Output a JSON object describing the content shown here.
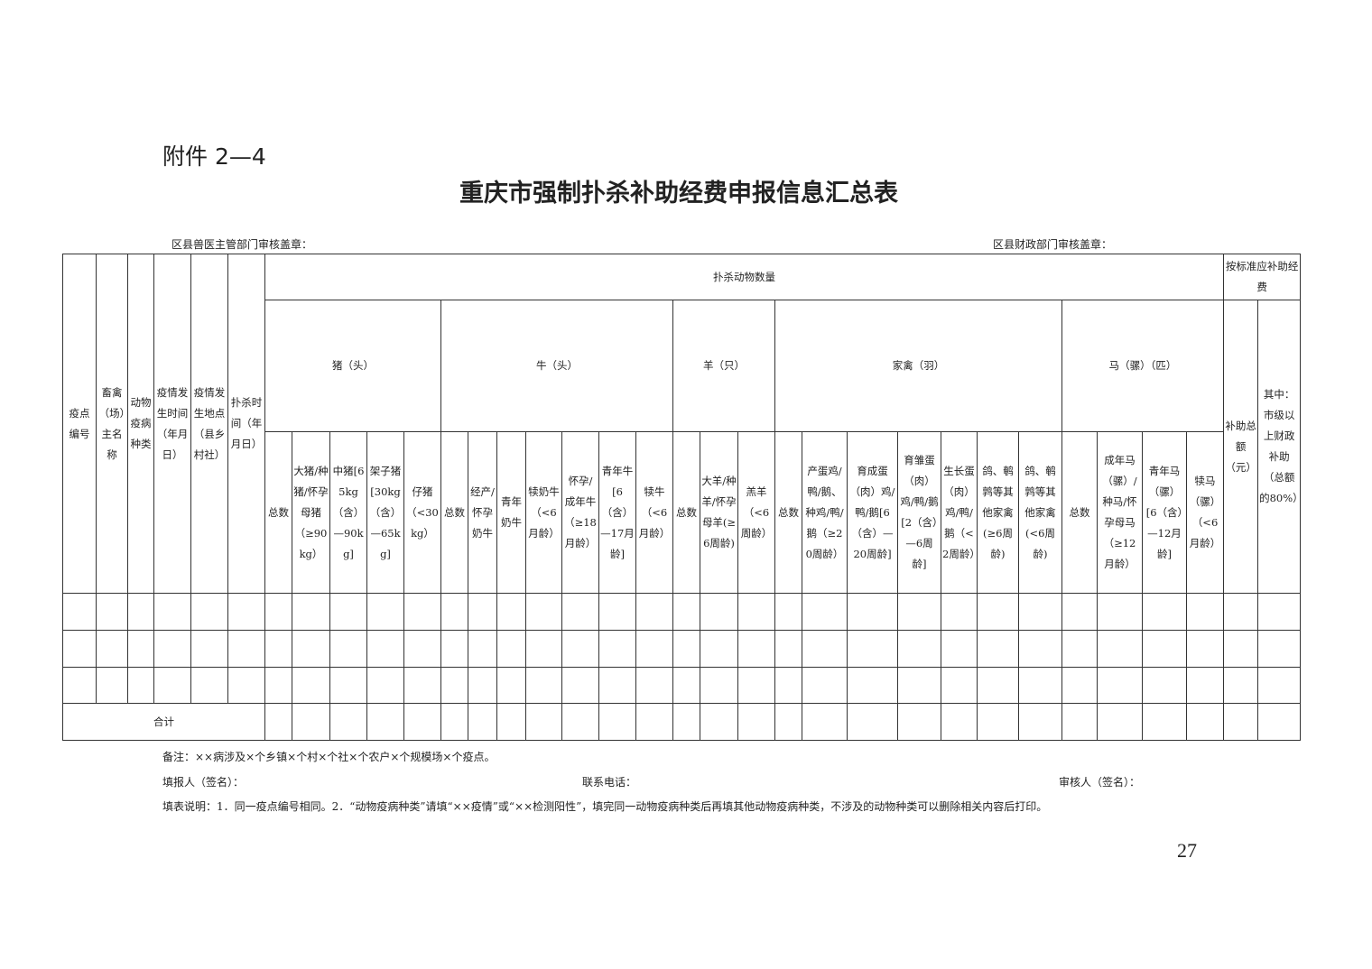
{
  "header": {
    "attachment": "附件 2—4",
    "title": "重庆市强制扑杀补助经费申报信息汇总表"
  },
  "stamps": {
    "left": "区县兽医主管部门审核盖章：",
    "right": "区县财政部门审核盖章："
  },
  "table": {
    "left_headers": [
      "疫点编号",
      "畜禽（场）主名称",
      "动物疫病种类",
      "疫情发生时间（年月日）",
      "疫情发生地点（县乡村社）",
      "扑杀时间（年月日）"
    ],
    "group_header": "扑杀动物数量",
    "subsidy_header": "按标准应补助经费",
    "animal_groups": [
      {
        "name": "猪（头）",
        "columns": [
          "总数",
          "大猪/种猪/怀孕母猪（≥90kg）",
          "中猪[65kg（含）—90kg]",
          "架子猪[30kg（含）—65kg]",
          "仔猪（<30kg）"
        ]
      },
      {
        "name": "牛（头）",
        "columns": [
          "总数",
          "经产/怀孕奶牛",
          "青年奶牛",
          "犊奶牛（<6月龄）",
          "怀孕/成年牛（≥18月龄）",
          "青年牛[6（含）—17月龄]",
          "犊牛（<6月龄）"
        ]
      },
      {
        "name": "羊（只）",
        "columns": [
          "总数",
          "大羊/种羊/怀孕母羊(≥6周龄)",
          "羔羊（<6周龄）"
        ]
      },
      {
        "name": "家禽（羽）",
        "columns": [
          "总数",
          "产蛋鸡/鸭/鹅、种鸡/鸭/鹅（≥20周龄）",
          "育成蛋（肉）鸡/鸭/鹅[6（含）—20周龄]",
          "育雏蛋（肉）鸡/鸭/鹅[2（含）—6周龄]",
          "生长蛋（肉）鸡/鸭/鹅（<2周龄）",
          "鸽、鹌鹑等其他家禽(≥6周龄)",
          "鸽、鹌鹑等其他家禽(<6周龄)"
        ]
      },
      {
        "name": "马（骡）（匹）",
        "columns": [
          "总数",
          "成年马（骡）/种马/怀孕母马（≥12月龄）",
          "青年马（骡）[6（含）—12月龄]",
          "犊马（骡）（<6月龄）"
        ]
      }
    ],
    "subsidy_columns": [
      "补助总额（元）",
      "其中：市级以上财政补助（总额的80%）"
    ],
    "total_label": "合计"
  },
  "footer": {
    "note": "备注：××病涉及×个乡镇×个村×个社×个农户×个规模场×个疫点。",
    "filler": "填报人（签名）：",
    "phone": "联系电话：",
    "reviewer": "审核人（签名）：",
    "instructions": "填表说明：1．同一疫点编号相同。2．“动物疫病种类”请填“××疫情”或“××检测阳性”，填完同一动物疫病种类后再填其他动物疫病种类，不涉及的动物种类可以删除相关内容后打印。",
    "page_number": "27"
  }
}
